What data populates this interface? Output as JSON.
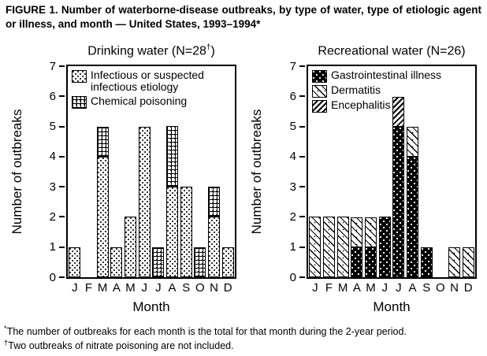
{
  "figure_title": "FIGURE 1. Number of waterborne-disease outbreaks, by type of water, type of etiologic agent or illness, and month — United States, 1993–1994*",
  "footnotes": [
    {
      "marker": "*",
      "text": "The number of outbreaks for each month is the total for that month during the 2-year period."
    },
    {
      "marker": "†",
      "text": "Two outbreaks of nitrate poisoning are not included."
    }
  ],
  "chart_data": [
    {
      "type": "bar",
      "stacked": true,
      "title": "Drinking water (N=28†)",
      "title_prefix": "Drinking water (N=28",
      "title_sup": "†",
      "title_suffix": ")",
      "ylabel": "Number of outbreaks",
      "xlabel": "Month",
      "ylim": [
        0,
        7
      ],
      "grid": false,
      "legend_position": "top-left-inside",
      "months": [
        "J",
        "F",
        "M",
        "A",
        "M",
        "J",
        "J",
        "A",
        "S",
        "O",
        "N",
        "D"
      ],
      "legend": [
        {
          "label": "Infectious or suspected infectious etiology",
          "pattern": "infectious"
        },
        {
          "label": "Chemical poisoning",
          "pattern": "chemical"
        }
      ],
      "series": [
        {
          "name": "Infectious or suspected infectious etiology",
          "pattern": "infectious",
          "values": [
            1,
            0,
            4,
            1,
            2,
            5,
            0,
            3,
            3,
            0,
            2,
            1
          ]
        },
        {
          "name": "Chemical poisoning",
          "pattern": "chemical",
          "values": [
            0,
            0,
            1,
            0,
            0,
            0,
            1,
            2,
            0,
            1,
            1,
            0
          ]
        }
      ],
      "monthly_totals": [
        1,
        0,
        5,
        1,
        2,
        5,
        1,
        5,
        3,
        1,
        3,
        1
      ],
      "total_outbreaks": 28
    },
    {
      "type": "bar",
      "stacked": true,
      "title": "Recreational water (N=26)",
      "title_prefix": "Recreational water (N=26",
      "title_sup": "",
      "title_suffix": ")",
      "ylabel": "Number of outbreaks",
      "xlabel": "Month",
      "ylim": [
        0,
        7
      ],
      "grid": false,
      "legend_position": "top-left-inside",
      "months": [
        "J",
        "F",
        "M",
        "A",
        "M",
        "J",
        "J",
        "A",
        "S",
        "O",
        "N",
        "D"
      ],
      "legend": [
        {
          "label": "Gastrointestinal illness",
          "pattern": "gi"
        },
        {
          "label": "Dermatitis",
          "pattern": "dermatitis"
        },
        {
          "label": "Encephalitis",
          "pattern": "encephalitis"
        }
      ],
      "series": [
        {
          "name": "Gastrointestinal illness",
          "pattern": "gi",
          "values": [
            0,
            0,
            0,
            1,
            1,
            2,
            5,
            4,
            1,
            0,
            0,
            0
          ]
        },
        {
          "name": "Dermatitis",
          "pattern": "dermatitis",
          "values": [
            2,
            2,
            2,
            1,
            1,
            0,
            0,
            1,
            0,
            0,
            1,
            1
          ]
        },
        {
          "name": "Encephalitis",
          "pattern": "encephalitis",
          "values": [
            0,
            0,
            0,
            0,
            0,
            0,
            1,
            0,
            0,
            0,
            0,
            0
          ]
        }
      ],
      "monthly_totals": [
        2,
        2,
        2,
        2,
        2,
        2,
        6,
        5,
        1,
        0,
        1,
        1
      ],
      "total_outbreaks": 26
    }
  ]
}
